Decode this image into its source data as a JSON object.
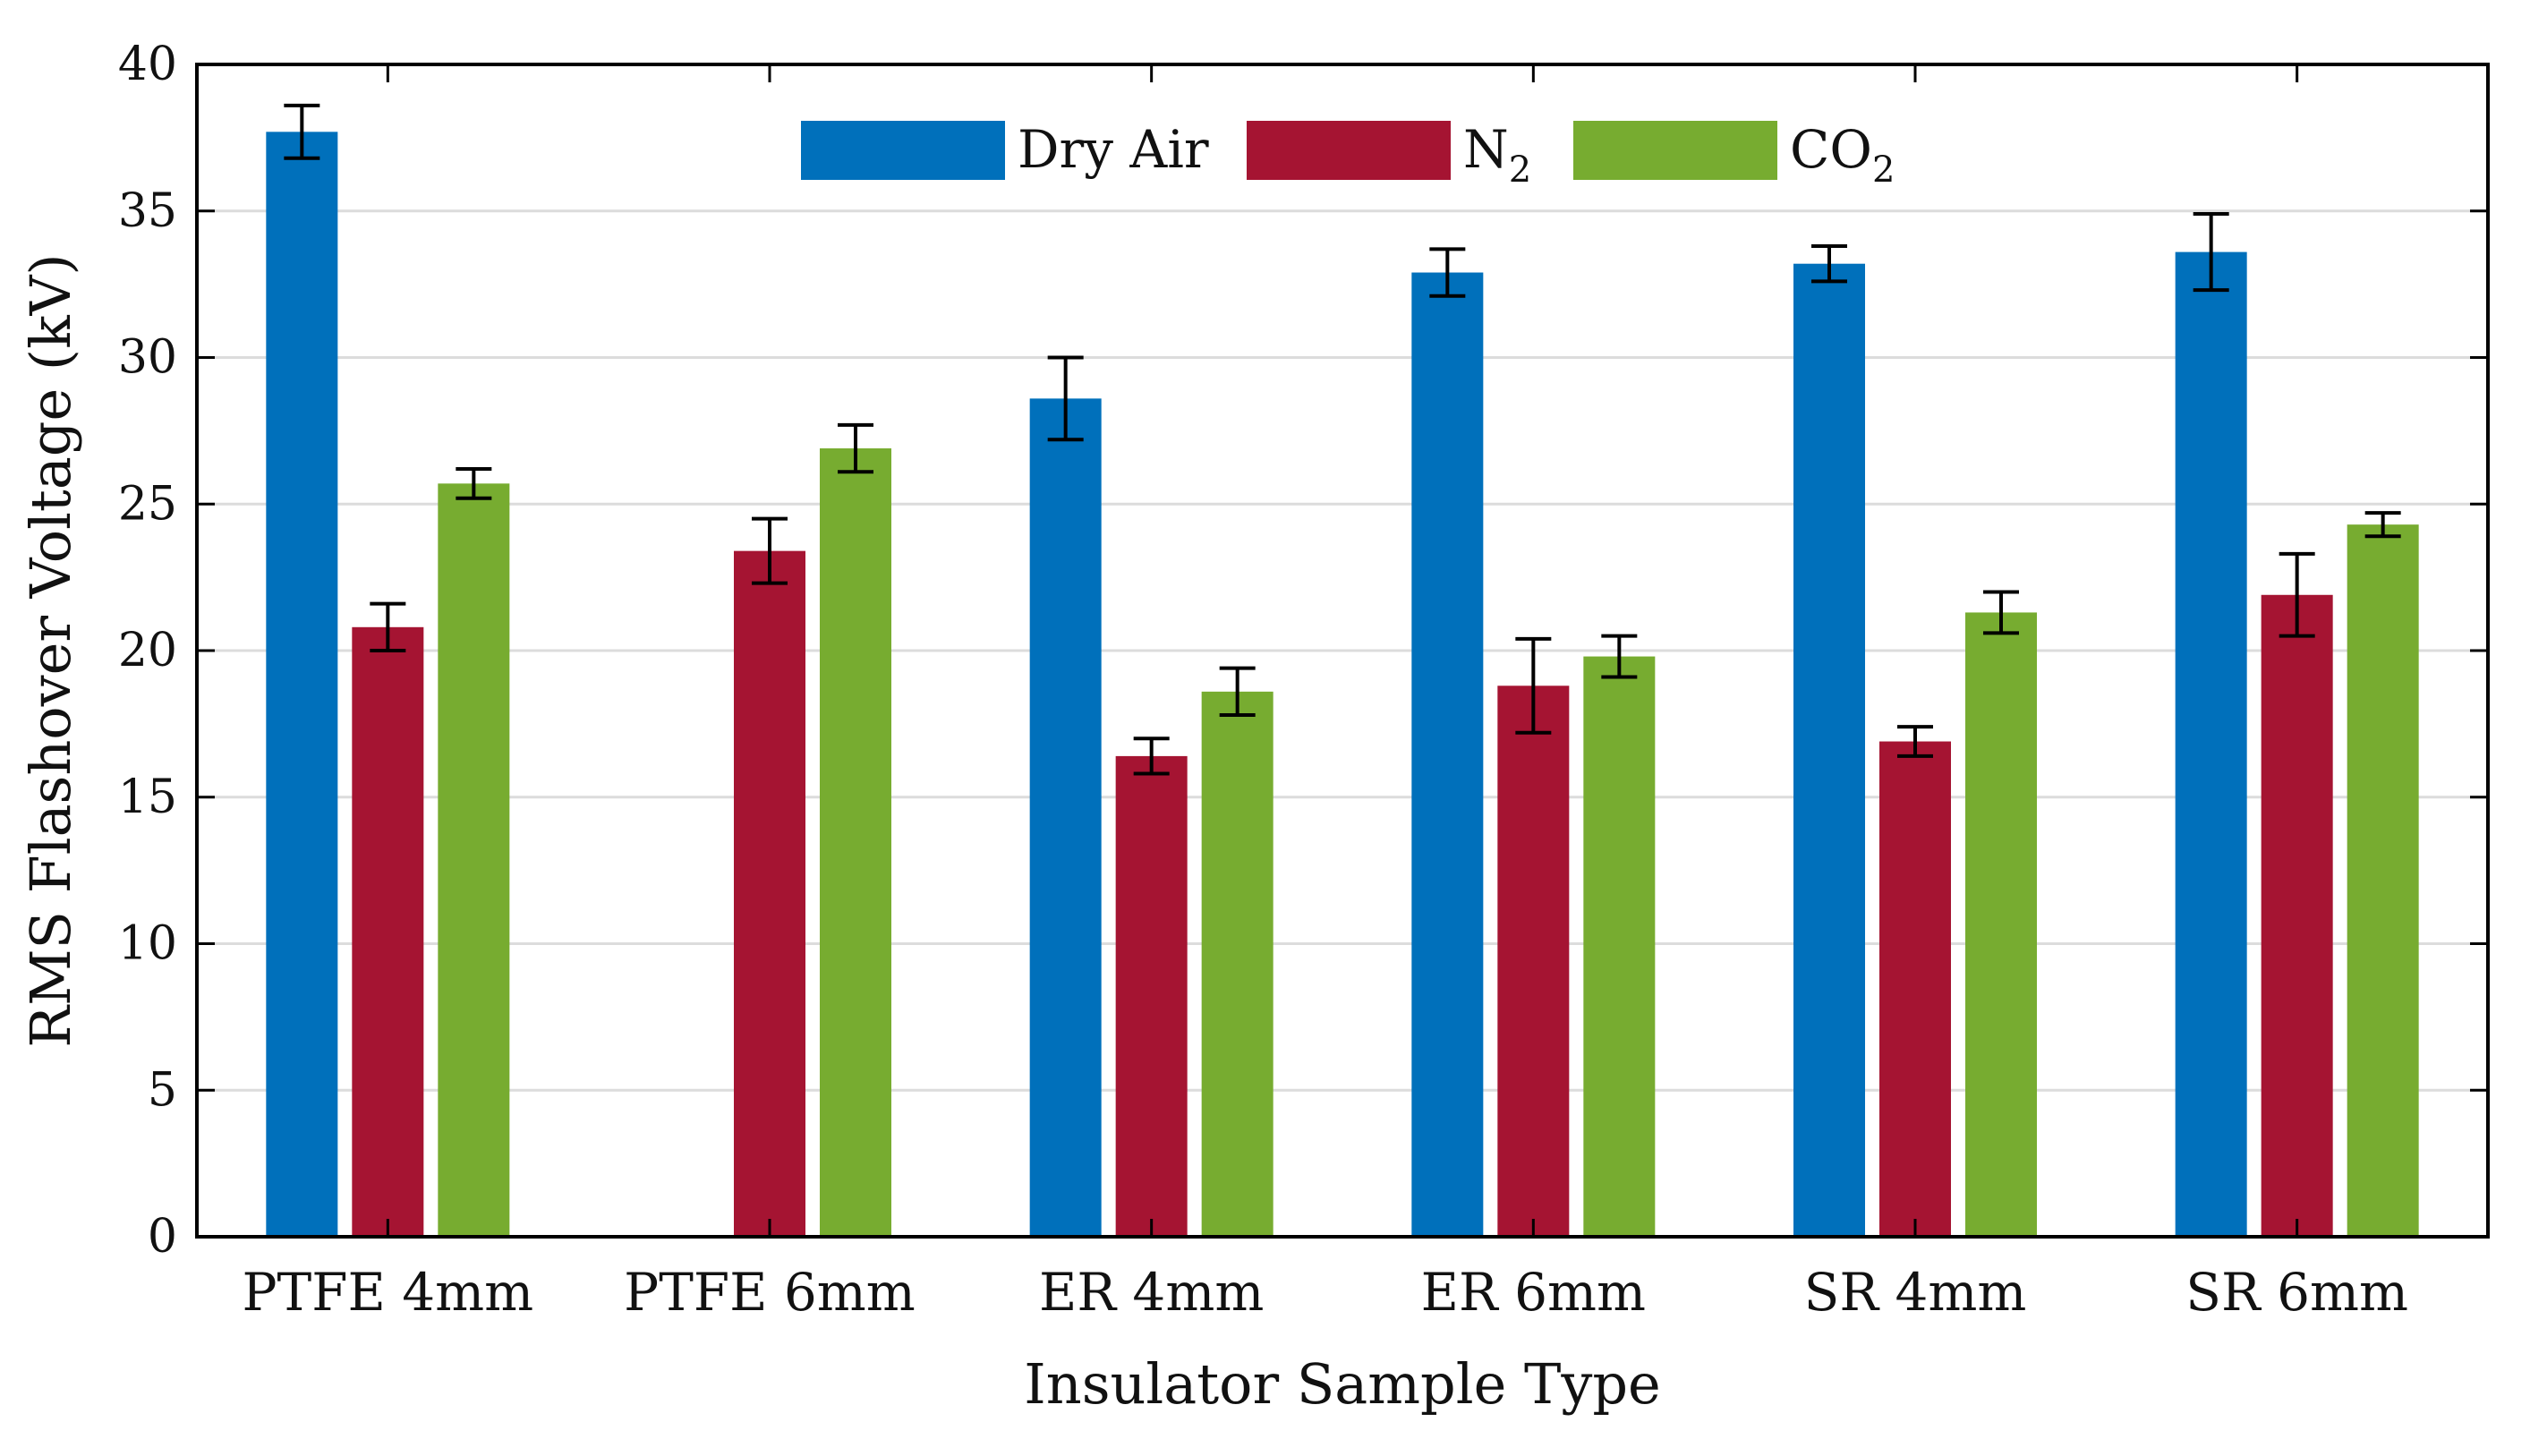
{
  "chart_data": {
    "type": "bar",
    "title": "",
    "xlabel": "Insulator Sample Type",
    "ylabel": "RMS Flashover Voltage (kV)",
    "ylim": [
      0,
      40
    ],
    "yticks": [
      0,
      5,
      10,
      15,
      20,
      25,
      30,
      35,
      40
    ],
    "ytick_labels": [
      "0",
      "5",
      "10",
      "15",
      "20",
      "25",
      "30",
      "35",
      "40"
    ],
    "grid": "horizontal",
    "legend_position": "top-center",
    "categories": [
      "PTFE 4mm",
      "PTFE 6mm",
      "ER 4mm",
      "ER 6mm",
      "SR 4mm",
      "SR 6mm"
    ],
    "series": [
      {
        "name": "Dry Air",
        "legend_text": "Dry Air",
        "legend_sub": "",
        "color": "#0070BB",
        "values": [
          37.7,
          null,
          28.6,
          32.9,
          33.2,
          33.6
        ],
        "errors": [
          0.9,
          null,
          1.4,
          0.8,
          0.6,
          1.3
        ]
      },
      {
        "name": "N2",
        "legend_text": "N",
        "legend_sub": "2",
        "color": "#A51432",
        "values": [
          20.8,
          23.4,
          16.4,
          18.8,
          16.9,
          21.9
        ],
        "errors": [
          0.8,
          1.1,
          0.6,
          1.6,
          0.5,
          1.4
        ]
      },
      {
        "name": "CO2",
        "legend_text": "CO",
        "legend_sub": "2",
        "color": "#77AC30",
        "values": [
          25.7,
          26.9,
          18.6,
          19.8,
          21.3,
          24.3
        ],
        "errors": [
          0.5,
          0.8,
          0.8,
          0.7,
          0.7,
          0.4
        ]
      }
    ]
  }
}
